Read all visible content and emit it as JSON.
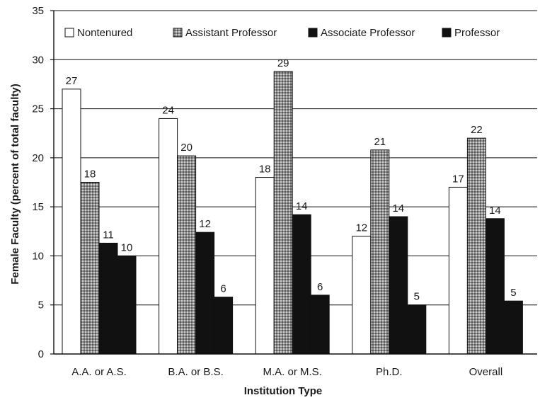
{
  "chart_data": {
    "type": "bar",
    "categories": [
      "A.A. or A.S.",
      "B.A. or B.S.",
      "M.A. or M.S.",
      "Ph.D.",
      "Overall"
    ],
    "series": [
      {
        "name": "Nontenured",
        "values": [
          27,
          24,
          18,
          12,
          17
        ],
        "labels": [
          "27",
          "24",
          "18",
          "12",
          "17"
        ]
      },
      {
        "name": "Assistant Professor",
        "values": [
          17.5,
          20.2,
          28.8,
          20.8,
          22
        ],
        "labels": [
          "18",
          "20",
          "29",
          "21",
          "22"
        ]
      },
      {
        "name": "Associate Professor",
        "values": [
          11.3,
          12.4,
          14.2,
          14,
          13.8
        ],
        "labels": [
          "11",
          "12",
          "14",
          "14",
          "14"
        ]
      },
      {
        "name": "Professor",
        "values": [
          10,
          5.8,
          6,
          5,
          5.4
        ],
        "labels": [
          "10",
          "6",
          "6",
          "5",
          "5"
        ]
      }
    ],
    "xlabel": "Institution Type",
    "ylabel": "Female Faculty (percent of total faculty)",
    "ylim": [
      0,
      35
    ],
    "yticks": [
      0,
      5,
      10,
      15,
      20,
      25,
      30,
      35
    ],
    "grid": true,
    "legend_position": "top",
    "colors": {
      "Nontenured": "#ffffff",
      "Assistant Professor": "#9a9a9a",
      "Associate Professor": "#111111",
      "Professor": "#111111",
      "grid": "#111111",
      "axis": "#111111"
    }
  }
}
